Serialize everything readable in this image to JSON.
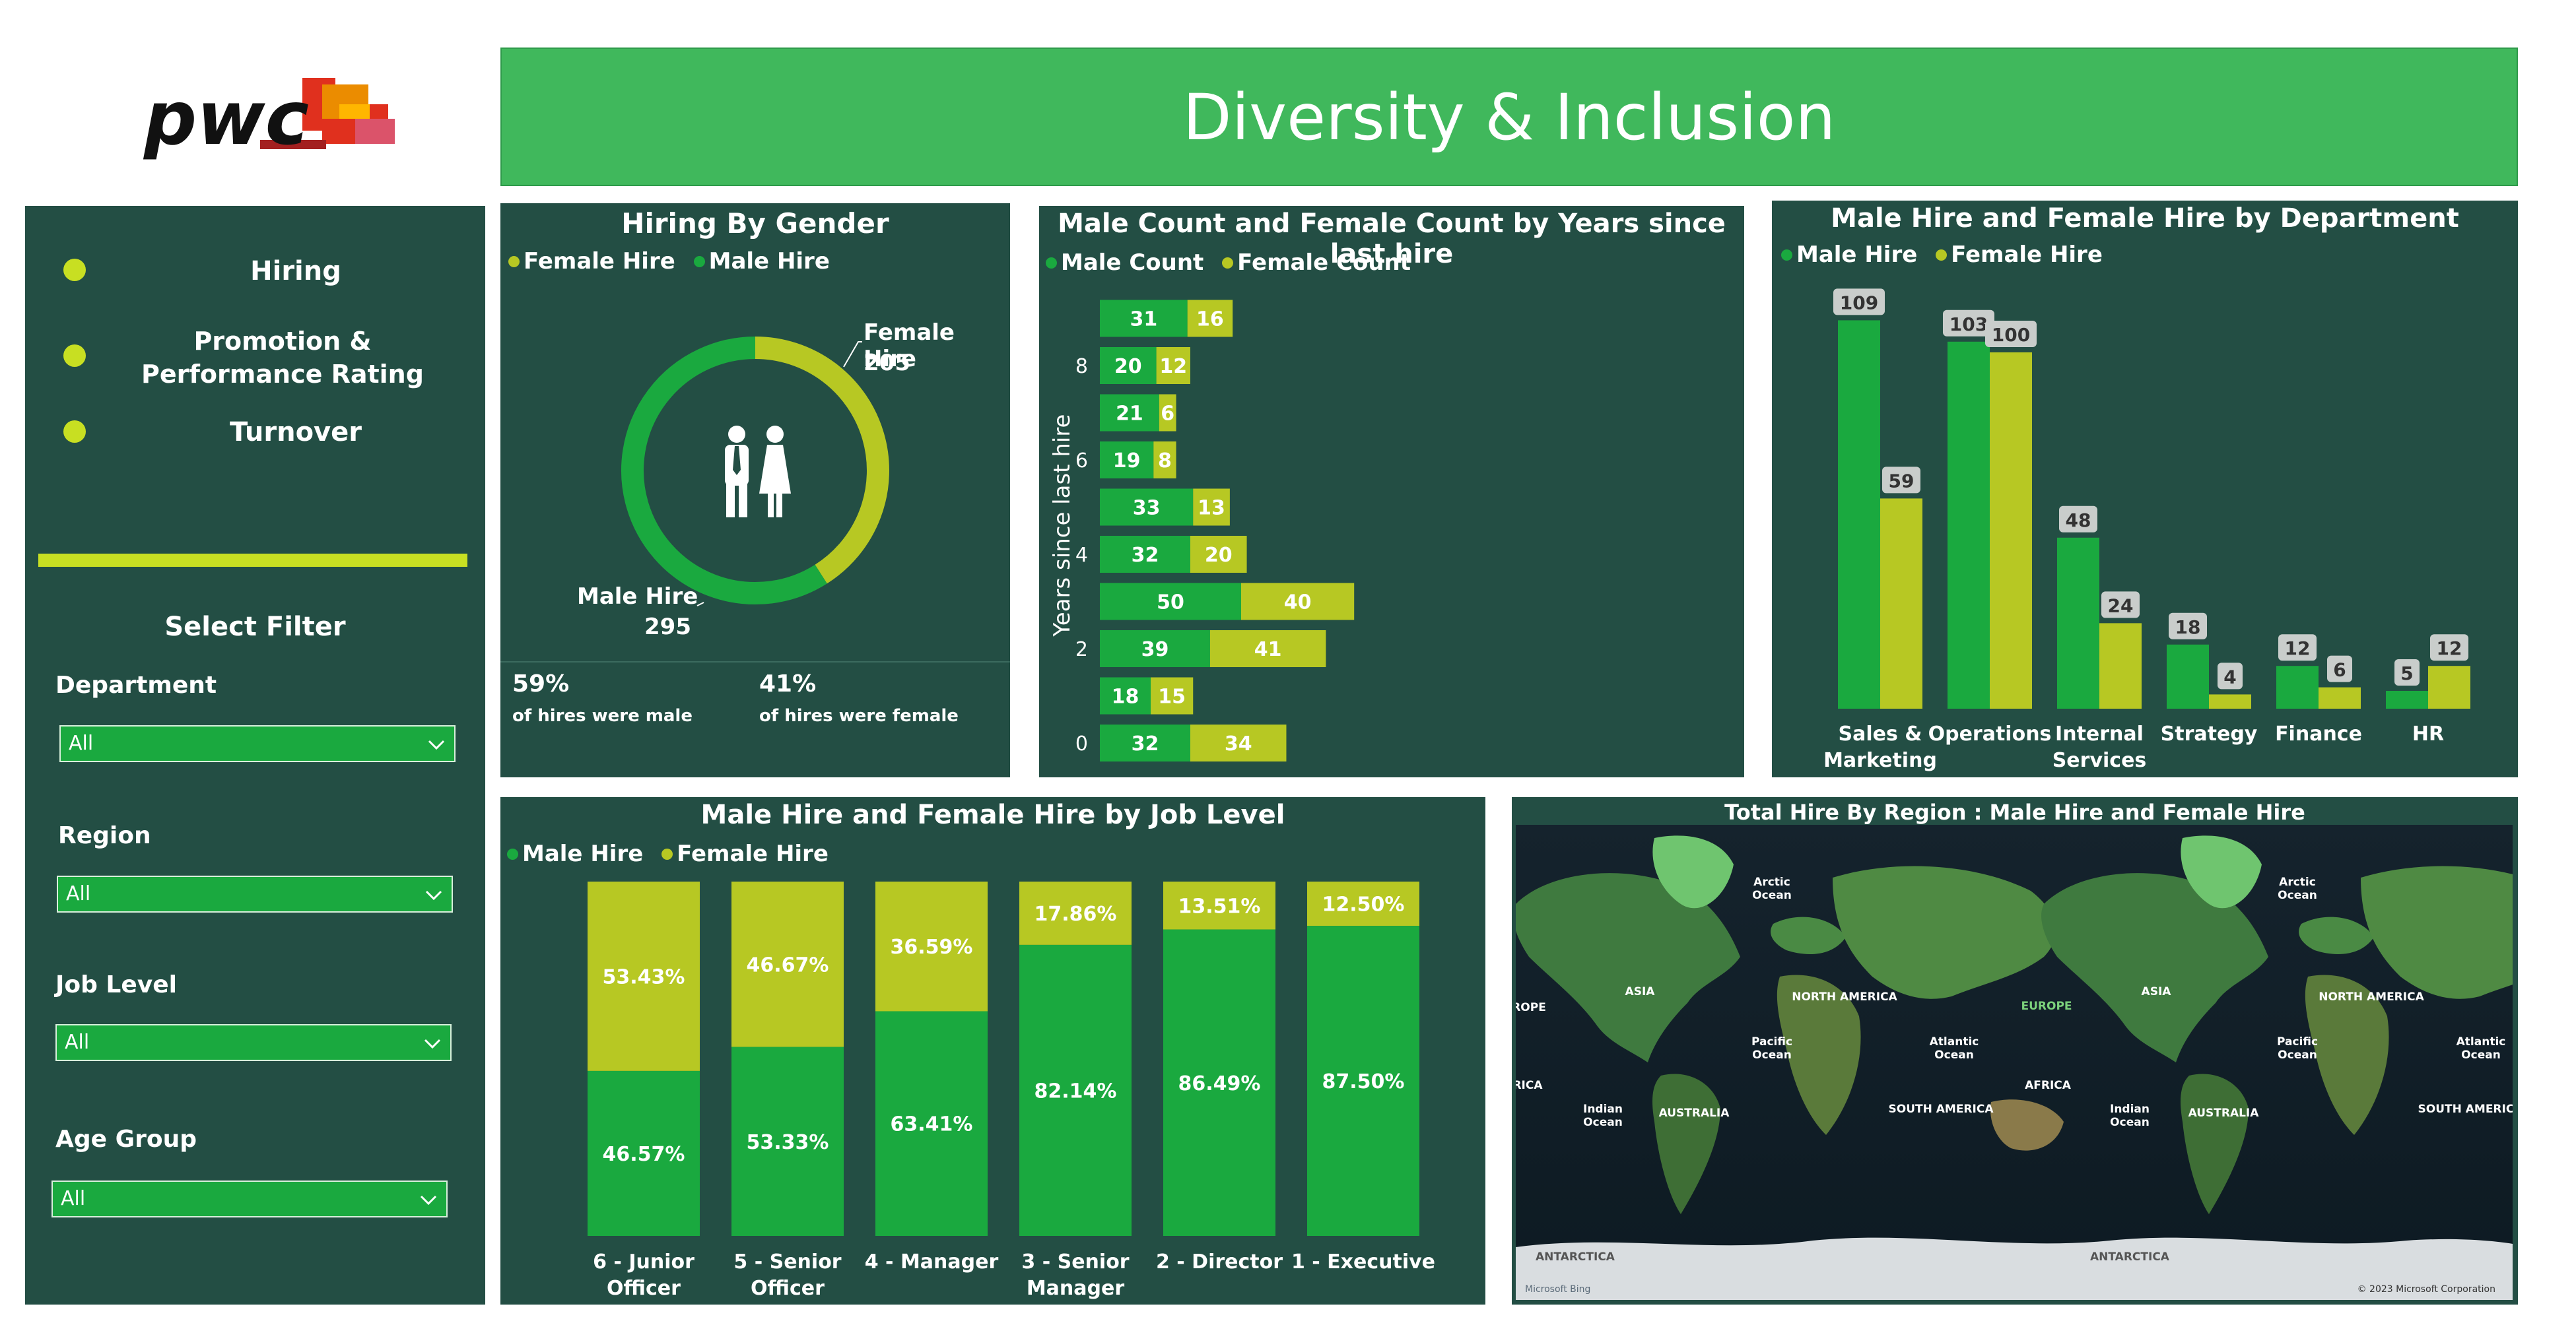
{
  "header": {
    "title": "Diversity & Inclusion",
    "logo_text": "pwc"
  },
  "sidebar": {
    "nav": [
      {
        "label": "Hiring"
      },
      {
        "label": "Promotion & Performance Rating"
      },
      {
        "label": "Turnover"
      }
    ],
    "filter_title": "Select Filter",
    "filters": [
      {
        "label": "Department",
        "value": "All"
      },
      {
        "label": "Region",
        "value": "All"
      },
      {
        "label": "Job Level",
        "value": "All"
      },
      {
        "label": "Age Group",
        "value": "All"
      }
    ]
  },
  "colors": {
    "male": "#1aa93f",
    "female": "#b7c823",
    "panel": "#234e44",
    "header": "#40b85c",
    "accent": "#c8df22"
  },
  "gender_panel": {
    "title": "Hiring By Gender",
    "legend": [
      "Female Hire",
      "Male Hire"
    ],
    "female_label": "Female Hire",
    "female_value": "205",
    "male_label": "Male Hire",
    "male_value": "295",
    "male_pct": "59%",
    "male_caption": "of hires were male",
    "female_pct": "41%",
    "female_caption": "of hires were female"
  },
  "chart_data": [
    {
      "type": "donut",
      "title": "Hiring By Gender",
      "series": [
        {
          "name": "Female Hire",
          "value": 205
        },
        {
          "name": "Male Hire",
          "value": 295
        }
      ]
    },
    {
      "type": "bar",
      "orientation": "horizontal",
      "stacked": true,
      "title": "Male Count and Female Count by Years since last hire",
      "ylabel": "Years since last hire",
      "y_ticks": [
        "0",
        "2",
        "4",
        "6",
        "8"
      ],
      "x": [
        0,
        1,
        2,
        3,
        4,
        5,
        6,
        7,
        8,
        9
      ],
      "legend": [
        "Male Count",
        "Female Count"
      ],
      "series": [
        {
          "name": "Male Count",
          "values": [
            32,
            18,
            39,
            50,
            32,
            33,
            19,
            21,
            20,
            31
          ]
        },
        {
          "name": "Female Count",
          "values": [
            34,
            15,
            41,
            40,
            20,
            13,
            8,
            6,
            12,
            16
          ]
        }
      ]
    },
    {
      "type": "bar",
      "title": "Male Hire and Female Hire by Department",
      "legend": [
        "Male Hire",
        "Female Hire"
      ],
      "categories": [
        [
          "Sales &",
          "Marketing"
        ],
        [
          "Operations"
        ],
        [
          "Internal",
          "Services"
        ],
        [
          "Strategy"
        ],
        [
          "Finance"
        ],
        [
          "HR"
        ]
      ],
      "series": [
        {
          "name": "Male Hire",
          "values": [
            109,
            103,
            48,
            18,
            12,
            5
          ]
        },
        {
          "name": "Female Hire",
          "values": [
            59,
            100,
            24,
            4,
            6,
            12
          ]
        }
      ]
    },
    {
      "type": "bar",
      "stacked": true,
      "percent": true,
      "title": "Male Hire and Female Hire by Job Level",
      "legend": [
        "Male Hire",
        "Female Hire"
      ],
      "categories": [
        [
          "6 - Junior",
          "Officer"
        ],
        [
          "5 - Senior",
          "Officer"
        ],
        [
          "4 - Manager"
        ],
        [
          "3 - Senior",
          "Manager"
        ],
        [
          "2 - Director"
        ],
        [
          "1 - Executive"
        ]
      ],
      "series": [
        {
          "name": "Male Hire",
          "values": [
            46.57,
            53.33,
            63.41,
            82.14,
            86.49,
            87.5
          ]
        },
        {
          "name": "Female Hire",
          "values": [
            53.43,
            46.67,
            36.59,
            17.86,
            13.51,
            12.5
          ]
        }
      ]
    }
  ],
  "map": {
    "title": "Total Hire By Region : Male Hire and Female Hire",
    "labels": [
      {
        "text": "Arctic",
        "text2": "Ocean"
      },
      {
        "text": "Arctic",
        "text2": "Ocean"
      },
      {
        "text": "ROPE"
      },
      {
        "text": "ASIA"
      },
      {
        "text": "NORTH AMERICA"
      },
      {
        "text": "EUROPE"
      },
      {
        "text": "ASIA"
      },
      {
        "text": "NORTH AMERICA"
      },
      {
        "text": "Pacific",
        "text2": "Ocean"
      },
      {
        "text": "Atlantic",
        "text2": "Ocean"
      },
      {
        "text": "Pacific",
        "text2": "Ocean"
      },
      {
        "text": "Atlantic",
        "text2": "Ocean"
      },
      {
        "text": "RICA"
      },
      {
        "text": "AFRICA"
      },
      {
        "text": "Indian",
        "text2": "Ocean"
      },
      {
        "text": "AUSTRALIA"
      },
      {
        "text": "SOUTH AMERICA"
      },
      {
        "text": "Indian",
        "text2": "Ocean"
      },
      {
        "text": "AUSTRALIA"
      },
      {
        "text": "SOUTH AMERICA"
      },
      {
        "text": "ANTARCTICA"
      },
      {
        "text": "ANTARCTICA"
      }
    ],
    "bing": "Microsoft Bing",
    "copyright": "© 2023 Microsoft Corporation"
  }
}
